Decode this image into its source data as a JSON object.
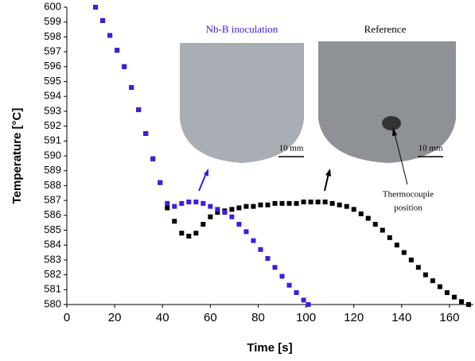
{
  "chart_data": {
    "type": "scatter",
    "xlabel": "Time [s]",
    "ylabel": "Temperature [°C]",
    "xlim": [
      0,
      170
    ],
    "xticks": [
      0,
      20,
      40,
      60,
      80,
      100,
      120,
      140,
      160
    ],
    "ylim": [
      580,
      600
    ],
    "yticks": [
      580,
      581,
      582,
      583,
      584,
      585,
      586,
      587,
      588,
      589,
      590,
      591,
      592,
      593,
      594,
      595,
      596,
      597,
      598,
      599,
      600
    ],
    "series": [
      {
        "name": "Reference",
        "color": "#000000",
        "x": [
          12,
          15,
          18,
          21,
          24,
          27,
          30,
          33,
          36,
          39,
          42,
          45,
          48,
          51,
          54,
          57,
          60,
          63,
          66,
          69,
          72,
          75,
          78,
          81,
          84,
          87,
          90,
          93,
          96,
          99,
          102,
          105,
          108,
          111,
          114,
          117,
          120,
          123,
          126,
          129,
          132,
          135,
          138,
          141,
          144,
          147,
          150,
          153,
          156,
          159,
          162,
          165,
          168
        ],
        "values": [
          600,
          599.1,
          598.1,
          597.1,
          596.0,
          594.6,
          593.1,
          591.5,
          589.8,
          588.2,
          586.5,
          585.6,
          584.8,
          584.6,
          584.8,
          585.4,
          585.9,
          586.2,
          586.3,
          586.4,
          586.5,
          586.6,
          586.6,
          586.7,
          586.7,
          586.8,
          586.8,
          586.8,
          586.8,
          586.9,
          586.9,
          586.9,
          586.9,
          586.8,
          586.7,
          586.6,
          586.4,
          586.1,
          585.8,
          585.4,
          585.0,
          584.5,
          584.0,
          583.5,
          583.0,
          582.5,
          582.0,
          581.6,
          581.2,
          580.8,
          580.5,
          580.2,
          580.0
        ]
      },
      {
        "name": "Nb-B inoculation",
        "color": "#3b1ee0",
        "x": [
          12,
          15,
          18,
          21,
          24,
          27,
          30,
          33,
          36,
          39,
          42,
          45,
          48,
          51,
          54,
          57,
          60,
          63,
          66,
          69,
          72,
          75,
          78,
          81,
          84,
          87,
          90,
          93,
          96,
          99,
          101
        ],
        "values": [
          600,
          599.1,
          598.1,
          597.1,
          596.0,
          594.6,
          593.1,
          591.5,
          589.8,
          588.2,
          586.8,
          586.6,
          586.8,
          586.9,
          586.9,
          586.8,
          586.6,
          586.4,
          586.2,
          585.9,
          585.4,
          584.9,
          584.3,
          583.7,
          583.1,
          582.5,
          581.9,
          581.3,
          580.8,
          580.3,
          580.0
        ]
      }
    ],
    "annotations": [
      "10 mm",
      "10 mm",
      "Thermocouple",
      "position"
    ]
  }
}
